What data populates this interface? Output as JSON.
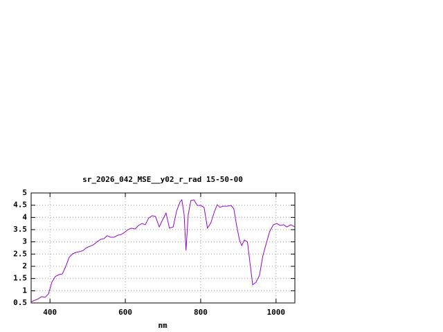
{
  "chart_data": {
    "type": "line",
    "title": "sr_2026_042_MSE__y02_r_rad 15-50-00",
    "x_label": "nm",
    "x": [
      350,
      368,
      378,
      387,
      396,
      405,
      414,
      424,
      433,
      442,
      451,
      460,
      469,
      479,
      488,
      497,
      506,
      515,
      525,
      534,
      543,
      552,
      561,
      570,
      580,
      589,
      598,
      607,
      616,
      626,
      635,
      644,
      653,
      662,
      671,
      680,
      690,
      699,
      708,
      717,
      727,
      736,
      745,
      750,
      756,
      761,
      767,
      774,
      782,
      791,
      800,
      809,
      818,
      827,
      837,
      844,
      851,
      859,
      870,
      881,
      888,
      895,
      903,
      909,
      916,
      924,
      932,
      938,
      947,
      956,
      965,
      974,
      983,
      993,
      1002,
      1011,
      1020,
      1029,
      1039,
      1050
    ],
    "series": [
      {
        "color": "#9400d3",
        "values": [
          0.55,
          0.66,
          0.76,
          0.73,
          0.87,
          1.35,
          1.58,
          1.66,
          1.69,
          2.0,
          2.37,
          2.51,
          2.57,
          2.6,
          2.65,
          2.76,
          2.82,
          2.88,
          3.0,
          3.1,
          3.13,
          3.25,
          3.19,
          3.19,
          3.27,
          3.3,
          3.39,
          3.5,
          3.56,
          3.53,
          3.67,
          3.75,
          3.7,
          3.98,
          4.07,
          4.04,
          3.61,
          3.9,
          4.18,
          3.56,
          3.61,
          4.26,
          4.63,
          4.72,
          4.12,
          2.65,
          4.12,
          4.69,
          4.72,
          4.49,
          4.49,
          4.41,
          3.56,
          3.78,
          4.26,
          4.52,
          4.41,
          4.46,
          4.46,
          4.49,
          4.35,
          3.7,
          3.08,
          2.85,
          3.08,
          3.0,
          2.0,
          1.24,
          1.35,
          1.63,
          2.43,
          2.93,
          3.42,
          3.7,
          3.75,
          3.67,
          3.7,
          3.61,
          3.7,
          3.61
        ]
      }
    ],
    "xlim": [
      350,
      1050
    ],
    "xticks": [
      400,
      600,
      800,
      1000
    ],
    "ylim": [
      0.5,
      5
    ],
    "yticks": [
      0.5,
      1,
      1.5,
      2,
      2.5,
      3,
      3.5,
      4,
      4.5,
      5
    ],
    "grid": true
  }
}
